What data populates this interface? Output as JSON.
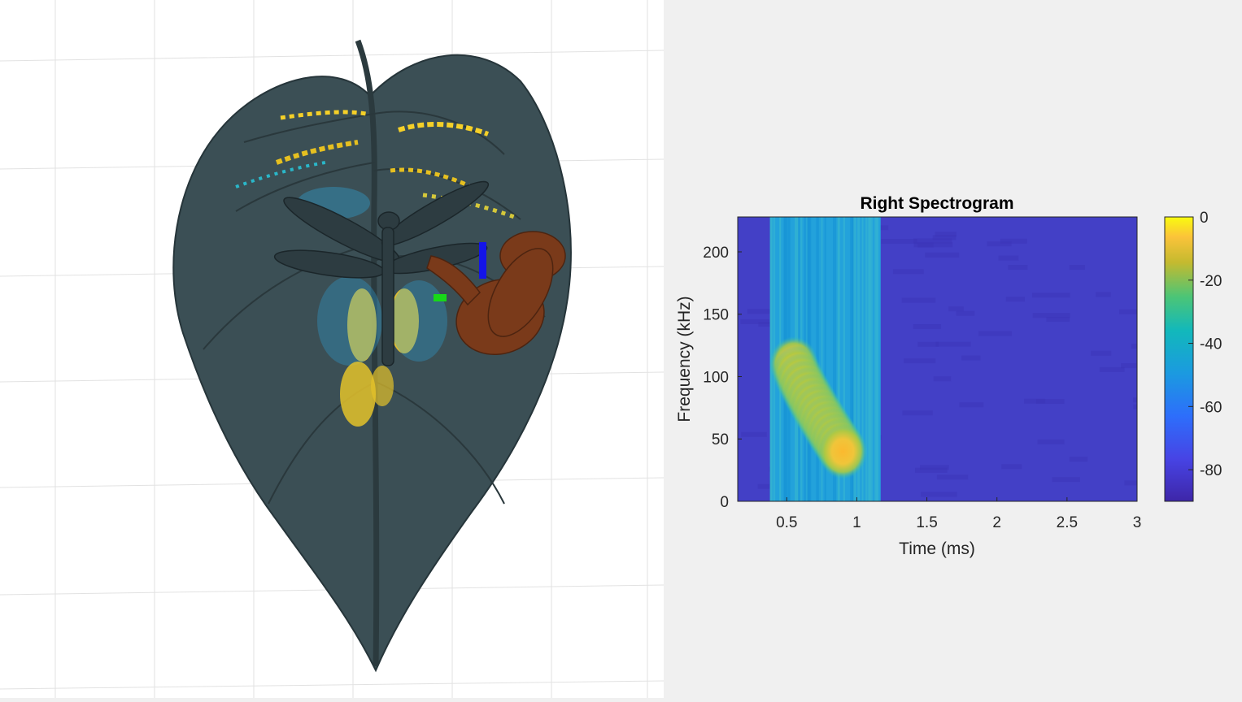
{
  "scene": {
    "description_objects": [
      "leaf-mesh",
      "dragonfly",
      "bat-model",
      "echo-highlights"
    ]
  },
  "chart_data": {
    "type": "heatmap",
    "title": "Right Spectrogram",
    "xlabel": "Time (ms)",
    "ylabel": "Frequency (kHz)",
    "xlim": [
      0.15,
      3.0
    ],
    "ylim": [
      0,
      228
    ],
    "xticks": [
      0.5,
      1,
      1.5,
      2,
      2.5,
      3
    ],
    "xtick_labels": [
      "0.5",
      "1",
      "1.5",
      "2",
      "2.5",
      "3"
    ],
    "yticks": [
      0,
      50,
      100,
      150,
      200
    ],
    "ytick_labels": [
      "0",
      "50",
      "100",
      "150",
      "200"
    ],
    "colorbar": {
      "range": [
        -90,
        0
      ],
      "ticks": [
        0,
        -20,
        -40,
        -60,
        -80
      ],
      "tick_labels": [
        "0",
        "-20",
        "-40",
        "-60",
        "-80"
      ],
      "colormap": "parula"
    },
    "call": {
      "start_ms": 0.55,
      "start_khz": 110,
      "end_ms": 0.9,
      "end_khz": 40,
      "peak_db": -12,
      "broadband_window_ms": [
        0.38,
        1.17
      ],
      "background_db": -82
    },
    "grid": false
  },
  "colors": {
    "panel_bg": "#f0f0f0",
    "scene_bg": "#ffffff",
    "leaf": "#3a4d52",
    "bat": "#7a3a1a"
  }
}
